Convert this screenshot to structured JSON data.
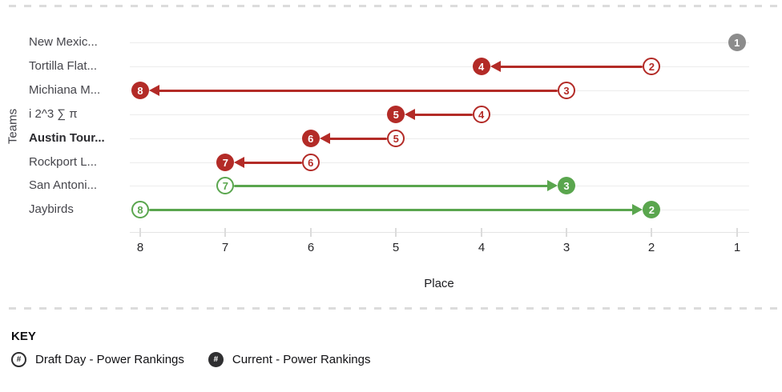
{
  "chart_data": {
    "type": "dumbbell-arrow",
    "title": "",
    "xlabel": "Place",
    "ylabel": "Teams",
    "x_ticks": [
      8,
      7,
      6,
      5,
      4,
      3,
      2,
      1
    ],
    "x_axis_reversed": true,
    "grid": "horizontal-only",
    "teams": [
      {
        "name": "New Mexic...",
        "draft": 1,
        "current": 1,
        "trend": "same",
        "bold": false
      },
      {
        "name": "Tortilla Flat...",
        "draft": 2,
        "current": 4,
        "trend": "down",
        "bold": false
      },
      {
        "name": "Michiana M...",
        "draft": 3,
        "current": 8,
        "trend": "down",
        "bold": false
      },
      {
        "name": "i 2^3 ∑ π",
        "draft": 4,
        "current": 5,
        "trend": "down",
        "bold": false
      },
      {
        "name": "Austin Tour...",
        "draft": 5,
        "current": 6,
        "trend": "down",
        "bold": true
      },
      {
        "name": "Rockport L...",
        "draft": 6,
        "current": 7,
        "trend": "down",
        "bold": false
      },
      {
        "name": "San Antoni...",
        "draft": 7,
        "current": 3,
        "trend": "up",
        "bold": false
      },
      {
        "name": "Jaybirds",
        "draft": 8,
        "current": 2,
        "trend": "up",
        "bold": false
      }
    ]
  },
  "key": {
    "title": "KEY",
    "items": [
      {
        "icon": "hash-open-circle-icon",
        "glyph": "#",
        "label": "Draft Day - Power Rankings"
      },
      {
        "icon": "hash-filled-circle-icon",
        "glyph": "#",
        "label": "Current - Power Rankings"
      }
    ]
  },
  "colors": {
    "improved_green": "#5aa64e",
    "dropped_red": "#b32b27",
    "unchanged_gray": "#8c8c8c",
    "gridline": "#ececec",
    "axis_line": "#e4e4e4",
    "legend_icon_dark": "#2f2f31"
  }
}
